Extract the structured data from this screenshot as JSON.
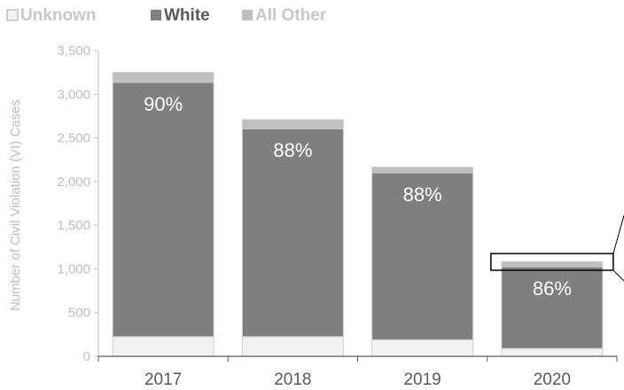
{
  "chart_data": {
    "type": "bar",
    "stacked": true,
    "title": "",
    "xlabel": "",
    "ylabel": "Number of Civil Violation (VI) Cases",
    "ylim": [
      0,
      3500
    ],
    "yticks": [
      0,
      500,
      1000,
      1500,
      2000,
      2500,
      3000,
      3500
    ],
    "ytick_labels": [
      "0",
      "500",
      "1,000",
      "1,500",
      "2,000",
      "2,500",
      "3,000",
      "3,500"
    ],
    "categories": [
      "2017",
      "2018",
      "2019",
      "2020"
    ],
    "series": [
      {
        "name": "Unknown",
        "color": "#f2f2f2",
        "values": [
          225,
          225,
          190,
          90
        ]
      },
      {
        "name": "White",
        "color": "#7f7f7f",
        "values": [
          2910,
          2380,
          1910,
          935
        ]
      },
      {
        "name": "All Other",
        "color": "#bfbfbf",
        "values": [
          115,
          105,
          65,
          60
        ]
      }
    ],
    "data_labels": [
      "90%",
      "88%",
      "88%",
      "86%"
    ],
    "legend_position": "top-left",
    "grid": false,
    "highlight_category": "2020"
  }
}
